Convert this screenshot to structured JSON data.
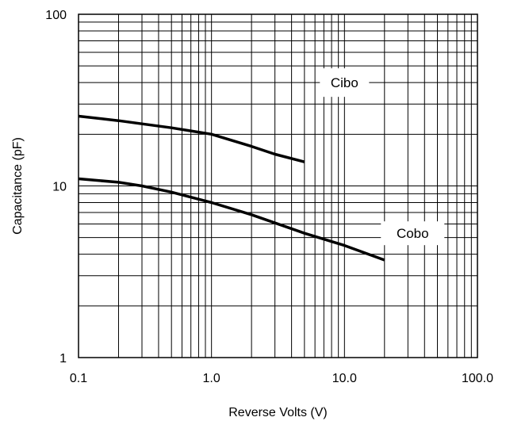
{
  "chart_data": {
    "type": "line",
    "title": "",
    "xlabel": "Reverse Volts (V)",
    "ylabel": "Capacitance (pF)",
    "xscale": "log",
    "yscale": "log",
    "xlim": [
      0.1,
      100
    ],
    "ylim": [
      1,
      100
    ],
    "grid": true,
    "x_tick_labels": [
      "0.1",
      "1.0",
      "10.0",
      "100.0"
    ],
    "x_tick_values": [
      0.1,
      1,
      10,
      100
    ],
    "y_tick_labels": [
      "1",
      "10",
      "100"
    ],
    "y_tick_values": [
      1,
      10,
      100
    ],
    "series": [
      {
        "name": "Cibo",
        "color": "#000000",
        "points": [
          [
            0.1,
            25.5
          ],
          [
            0.2,
            24
          ],
          [
            0.3,
            23
          ],
          [
            0.5,
            21.8
          ],
          [
            1.0,
            20
          ],
          [
            2.0,
            17
          ],
          [
            3.0,
            15.3
          ],
          [
            5.0,
            13.8
          ]
        ]
      },
      {
        "name": "Cobo",
        "color": "#000000",
        "points": [
          [
            0.1,
            11
          ],
          [
            0.2,
            10.5
          ],
          [
            0.3,
            10
          ],
          [
            0.5,
            9.2
          ],
          [
            1.0,
            8
          ],
          [
            2.0,
            6.8
          ],
          [
            5.0,
            5.3
          ],
          [
            10.0,
            4.5
          ],
          [
            20.0,
            3.7
          ]
        ]
      }
    ],
    "annotations": [
      {
        "text": "Cibo",
        "series": "Cibo"
      },
      {
        "text": "Cobo",
        "series": "Cobo"
      }
    ]
  }
}
